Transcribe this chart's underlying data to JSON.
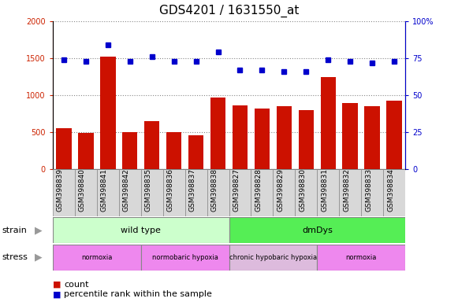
{
  "title": "GDS4201 / 1631550_at",
  "samples": [
    "GSM398839",
    "GSM398840",
    "GSM398841",
    "GSM398842",
    "GSM398835",
    "GSM398836",
    "GSM398837",
    "GSM398838",
    "GSM398827",
    "GSM398828",
    "GSM398829",
    "GSM398830",
    "GSM398831",
    "GSM398832",
    "GSM398833",
    "GSM398834"
  ],
  "counts": [
    550,
    490,
    1520,
    500,
    650,
    500,
    460,
    970,
    860,
    820,
    850,
    800,
    1240,
    890,
    850,
    930
  ],
  "percentiles": [
    74,
    73,
    84,
    73,
    76,
    73,
    73,
    79,
    67,
    67,
    66,
    66,
    74,
    73,
    72,
    73
  ],
  "bar_color": "#cc1100",
  "dot_color": "#0000cc",
  "ylim_left": [
    0,
    2000
  ],
  "ylim_right": [
    0,
    100
  ],
  "yticks_left": [
    0,
    500,
    1000,
    1500,
    2000
  ],
  "ytick_labels_left": [
    "0",
    "500",
    "1000",
    "1500",
    "2000"
  ],
  "yticks_right": [
    0,
    25,
    50,
    75,
    100
  ],
  "ytick_labels_right": [
    "0",
    "25",
    "50",
    "75",
    "100%"
  ],
  "strain_groups": [
    {
      "label": "wild type",
      "start": 0,
      "end": 8,
      "color": "#ccffcc"
    },
    {
      "label": "dmDys",
      "start": 8,
      "end": 16,
      "color": "#55ee55"
    }
  ],
  "stress_groups": [
    {
      "label": "normoxia",
      "start": 0,
      "end": 4,
      "color": "#ee88ee"
    },
    {
      "label": "normobaric hypoxia",
      "start": 4,
      "end": 8,
      "color": "#ee88ee"
    },
    {
      "label": "chronic hypobaric hypoxia",
      "start": 8,
      "end": 12,
      "color": "#ddbbdd"
    },
    {
      "label": "normoxia",
      "start": 12,
      "end": 16,
      "color": "#ee88ee"
    }
  ],
  "axis_color_left": "#cc2200",
  "axis_color_right": "#0000cc",
  "title_fontsize": 11,
  "tick_fontsize": 7,
  "label_fontsize": 8,
  "background_color": "#ffffff",
  "grid_linestyle": "dotted",
  "grid_color": "#888888"
}
